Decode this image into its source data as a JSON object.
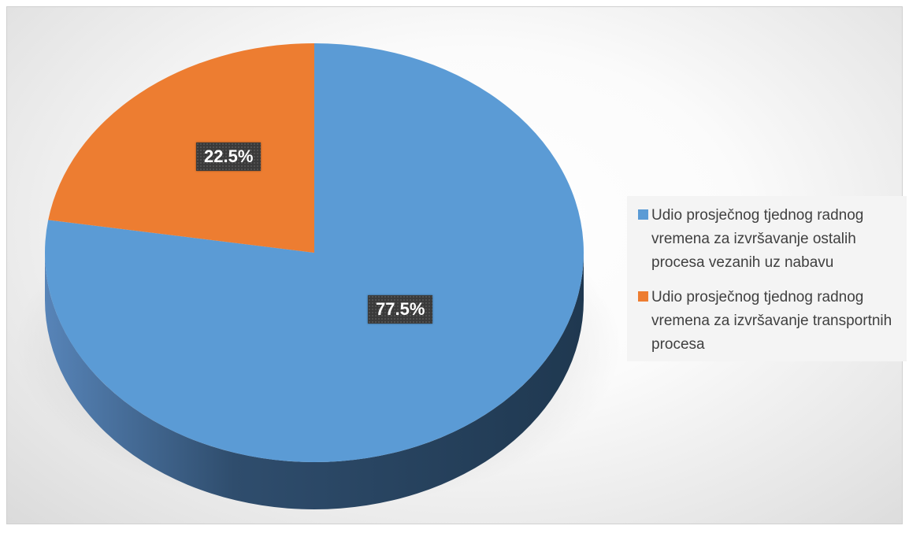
{
  "chart_data": {
    "type": "pie",
    "title": "",
    "slices": [
      {
        "name": "Udio prosječnog tjednog radnog vremena za izvršavanje ostalih procesa vezanih uz nabavu",
        "value": 77.5,
        "label": "77.5%",
        "color": "#5b9bd5"
      },
      {
        "name": "Udio prosječnog tjednog radnog vremena za izvršavanje transportnih procesa",
        "value": 22.5,
        "label": "22.5%",
        "color": "#ed7d31"
      }
    ],
    "legend_position": "right"
  }
}
